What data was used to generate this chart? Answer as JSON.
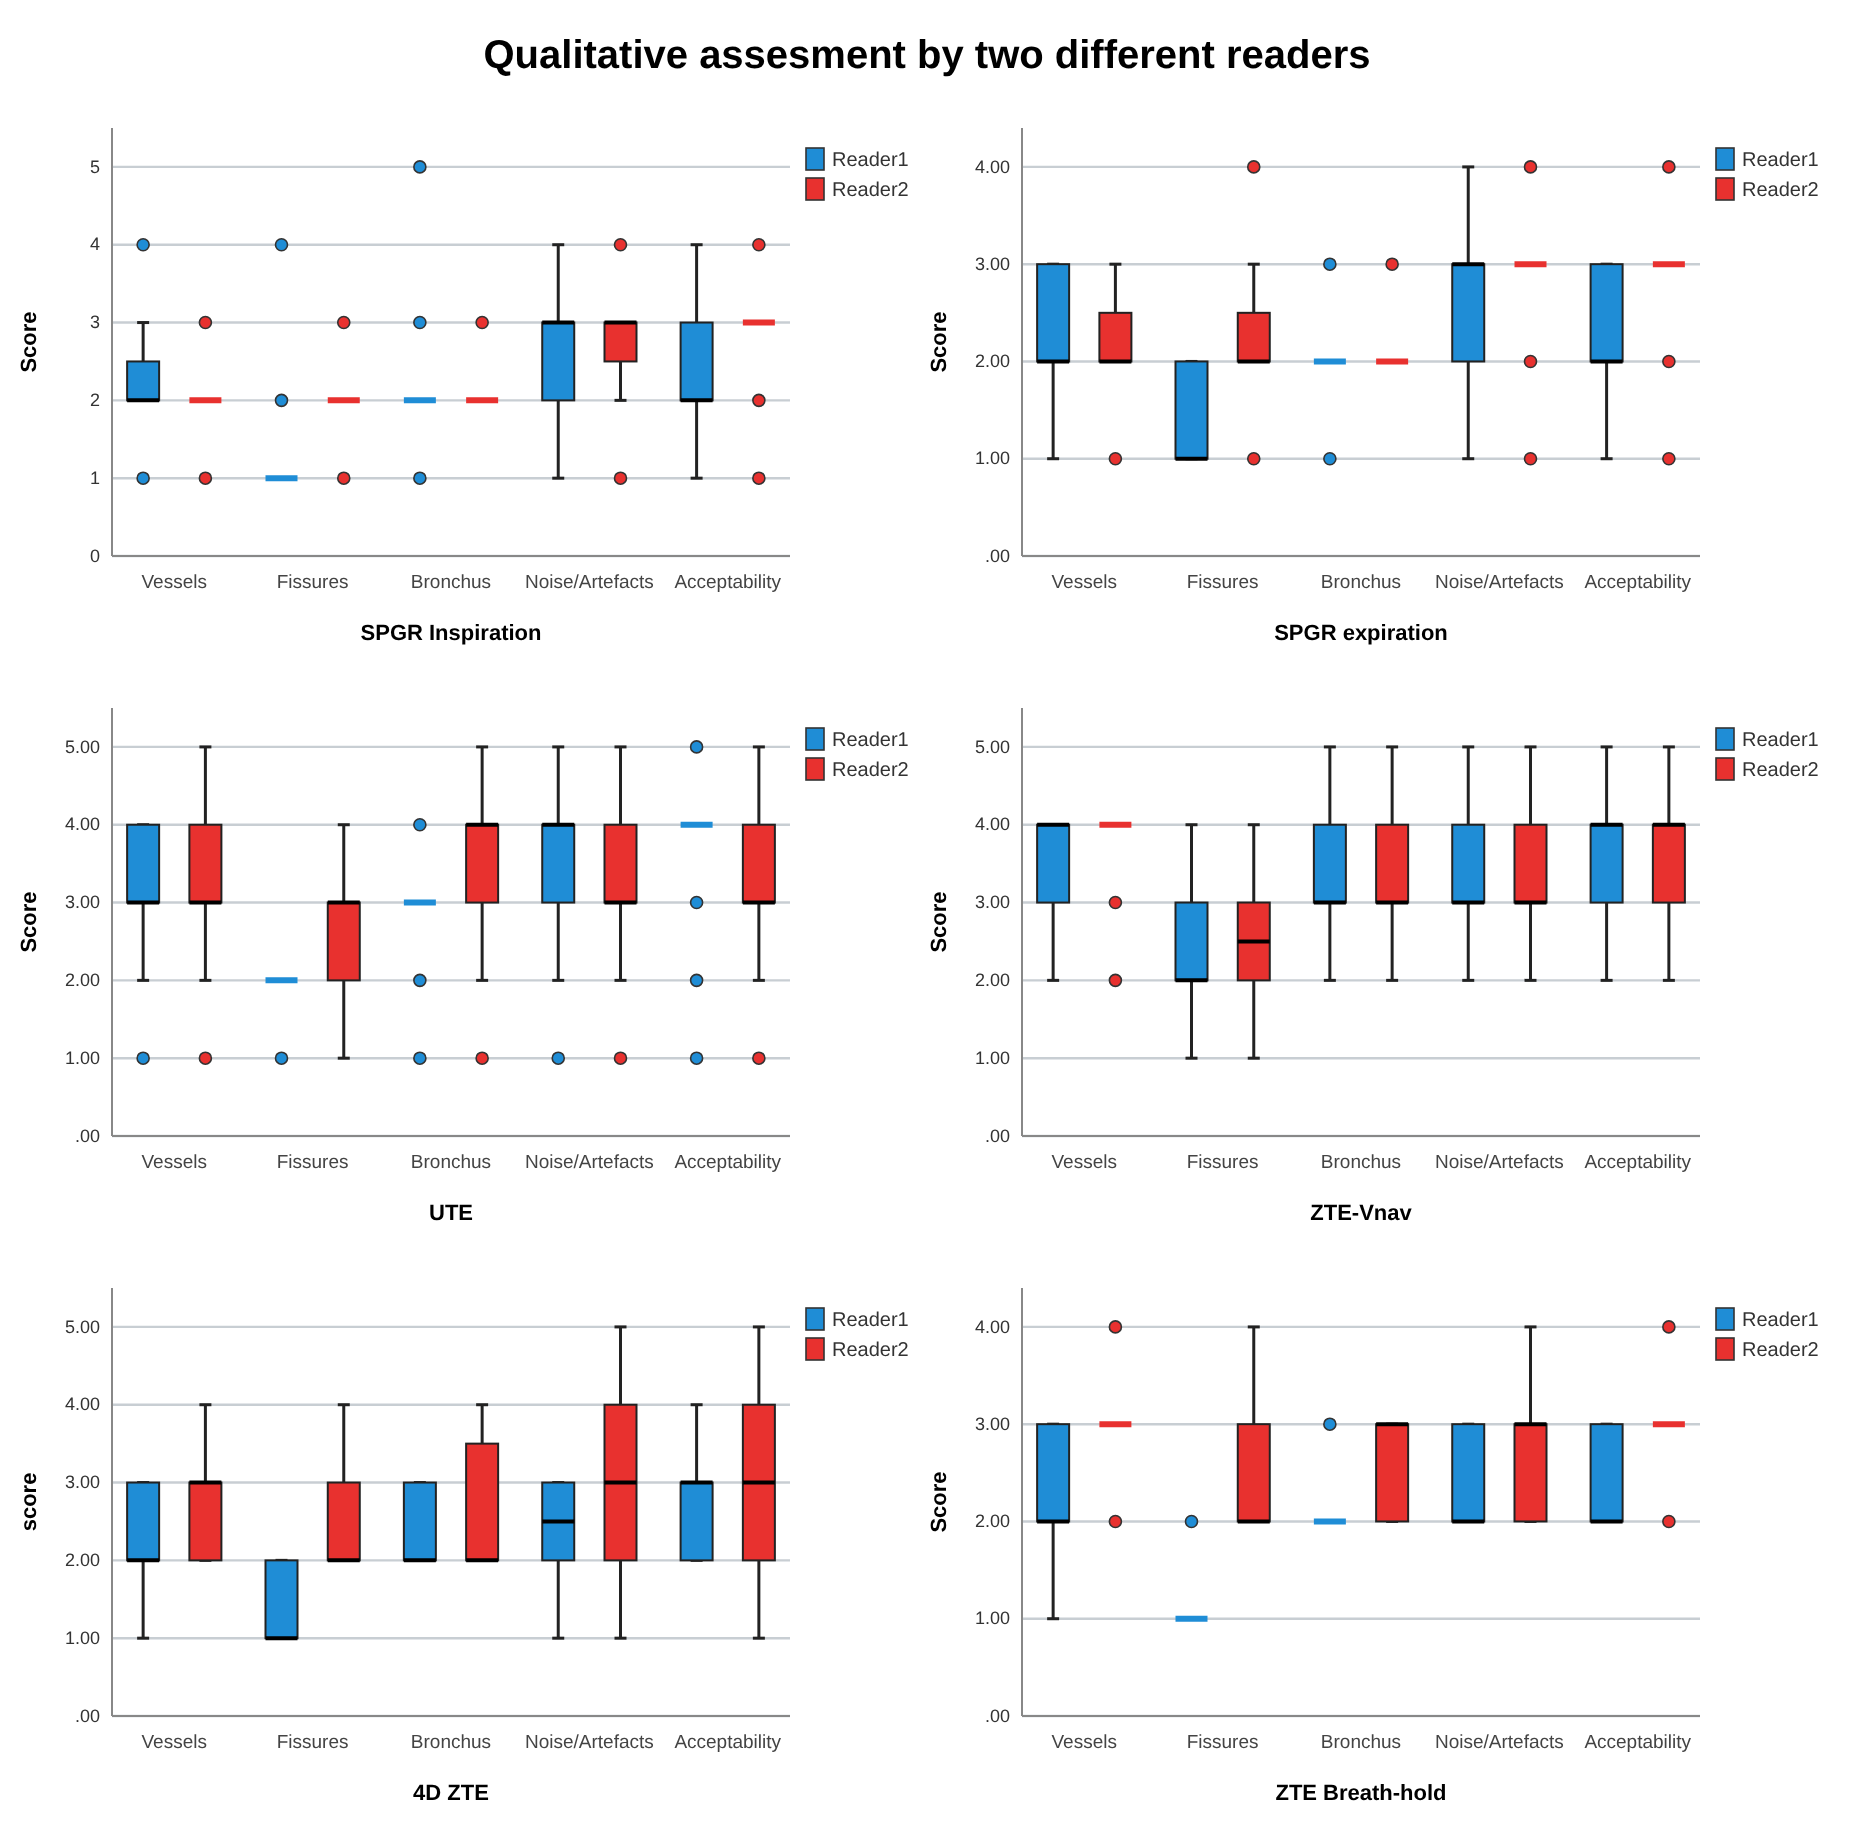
{
  "chart_data": [
    {
      "type": "box",
      "title": "Qualitative assesment by two different readers",
      "xlabel": "SPGR Inspiration",
      "ylabel": "Score",
      "categories": [
        "Vessels",
        "Fissures",
        "Bronchus",
        "Noise/Artefacts",
        "Acceptability"
      ],
      "ylim": [
        0,
        5.5
      ],
      "yticks": [
        0,
        1,
        2,
        3,
        4,
        5
      ],
      "grid": "y",
      "legend": "top right",
      "series": [
        {
          "name": "Reader1",
          "color": "#1f8dd6",
          "boxes": [
            {
              "low": 2,
              "q1": 2,
              "median": 2,
              "q3": 2.5,
              "high": 3,
              "outliers": [
                4,
                1
              ]
            },
            {
              "low": 1,
              "q1": 1,
              "median": 1,
              "q3": 1,
              "high": 1,
              "outliers": [
                4,
                2
              ]
            },
            {
              "low": 2,
              "q1": 2,
              "median": 2,
              "q3": 2,
              "high": 2,
              "outliers": [
                5,
                3,
                1
              ]
            },
            {
              "low": 1,
              "q1": 2,
              "median": 3,
              "q3": 3,
              "high": 4
            },
            {
              "low": 1,
              "q1": 2,
              "median": 2,
              "q3": 3,
              "high": 4
            }
          ]
        },
        {
          "name": "Reader2",
          "color": "#e8312f",
          "boxes": [
            {
              "low": 2,
              "q1": 2,
              "median": 2,
              "q3": 2,
              "high": 2,
              "outliers": [
                3,
                1
              ]
            },
            {
              "low": 2,
              "q1": 2,
              "median": 2,
              "q3": 2,
              "high": 2,
              "outliers": [
                3,
                1
              ]
            },
            {
              "low": 2,
              "q1": 2,
              "median": 2,
              "q3": 2,
              "high": 2,
              "outliers": [
                3
              ]
            },
            {
              "low": 2,
              "q1": 2.5,
              "median": 3,
              "q3": 3,
              "high": 3,
              "outliers": [
                4,
                1
              ]
            },
            {
              "low": 3,
              "q1": 3,
              "median": 3,
              "q3": 3,
              "high": 3,
              "outliers": [
                4,
                2,
                1
              ]
            }
          ]
        }
      ]
    },
    {
      "type": "box",
      "xlabel": "SPGR expiration",
      "ylabel": "Score",
      "categories": [
        "Vessels",
        "Fissures",
        "Bronchus",
        "Noise/Artefacts",
        "Acceptability"
      ],
      "ylim": [
        0,
        4.4
      ],
      "yticks": [
        {
          "value": 0,
          "label": ".00"
        },
        {
          "value": 1,
          "label": "1.00"
        },
        {
          "value": 2,
          "label": "2.00"
        },
        {
          "value": 3,
          "label": "3.00"
        },
        {
          "value": 4,
          "label": "4.00"
        }
      ],
      "grid": "y",
      "legend": "top right",
      "series": [
        {
          "name": "Reader1",
          "color": "#1f8dd6",
          "boxes": [
            {
              "low": 1,
              "q1": 2,
              "median": 2,
              "q3": 3,
              "high": 3
            },
            {
              "low": 1,
              "q1": 1,
              "median": 1,
              "q3": 2,
              "high": 2
            },
            {
              "low": 2,
              "q1": 2,
              "median": 2,
              "q3": 2,
              "high": 2,
              "outliers": [
                3,
                1
              ]
            },
            {
              "low": 1,
              "q1": 2,
              "median": 3,
              "q3": 3,
              "high": 4
            },
            {
              "low": 1,
              "q1": 2,
              "median": 2,
              "q3": 3,
              "high": 3
            }
          ]
        },
        {
          "name": "Reader2",
          "color": "#e8312f",
          "boxes": [
            {
              "low": 2,
              "q1": 2,
              "median": 2,
              "q3": 2.5,
              "high": 3,
              "outliers": [
                1
              ]
            },
            {
              "low": 2,
              "q1": 2,
              "median": 2,
              "q3": 2.5,
              "high": 3,
              "outliers": [
                4,
                1
              ]
            },
            {
              "low": 2,
              "q1": 2,
              "median": 2,
              "q3": 2,
              "high": 2,
              "outliers": [
                3
              ]
            },
            {
              "low": 3,
              "q1": 3,
              "median": 3,
              "q3": 3,
              "high": 3,
              "outliers": [
                4,
                2,
                1
              ]
            },
            {
              "low": 3,
              "q1": 3,
              "median": 3,
              "q3": 3,
              "high": 3,
              "outliers": [
                4,
                2,
                1
              ]
            }
          ]
        }
      ]
    },
    {
      "type": "box",
      "xlabel": "UTE",
      "ylabel": "Score",
      "categories": [
        "Vessels",
        "Fissures",
        "Bronchus",
        "Noise/Artefacts",
        "Acceptability"
      ],
      "ylim": [
        0,
        5.5
      ],
      "yticks": [
        {
          "value": 0,
          "label": ".00"
        },
        {
          "value": 1,
          "label": "1.00"
        },
        {
          "value": 2,
          "label": "2.00"
        },
        {
          "value": 3,
          "label": "3.00"
        },
        {
          "value": 4,
          "label": "4.00"
        },
        {
          "value": 5,
          "label": "5.00"
        }
      ],
      "grid": "y",
      "legend": "top right",
      "series": [
        {
          "name": "Reader1",
          "color": "#1f8dd6",
          "boxes": [
            {
              "low": 2,
              "q1": 3,
              "median": 3,
              "q3": 4,
              "high": 4,
              "outliers": [
                1
              ]
            },
            {
              "low": 2,
              "q1": 2,
              "median": 2,
              "q3": 2,
              "high": 2,
              "outliers": [
                1
              ]
            },
            {
              "low": 3,
              "q1": 3,
              "median": 3,
              "q3": 3,
              "high": 3,
              "outliers": [
                4,
                2,
                1
              ]
            },
            {
              "low": 2,
              "q1": 3,
              "median": 4,
              "q3": 4,
              "high": 5,
              "outliers": [
                1
              ]
            },
            {
              "low": 4,
              "q1": 4,
              "median": 4,
              "q3": 4,
              "high": 4,
              "outliers": [
                5,
                3,
                2,
                1
              ]
            }
          ]
        },
        {
          "name": "Reader2",
          "color": "#e8312f",
          "boxes": [
            {
              "low": 2,
              "q1": 3,
              "median": 3,
              "q3": 4,
              "high": 5,
              "outliers": [
                1
              ]
            },
            {
              "low": 1,
              "q1": 2,
              "median": 3,
              "q3": 3,
              "high": 4
            },
            {
              "low": 2,
              "q1": 3,
              "median": 4,
              "q3": 4,
              "high": 5,
              "outliers": [
                1
              ]
            },
            {
              "low": 2,
              "q1": 3,
              "median": 3,
              "q3": 4,
              "high": 5,
              "outliers": [
                1
              ]
            },
            {
              "low": 2,
              "q1": 3,
              "median": 3,
              "q3": 4,
              "high": 5,
              "outliers": [
                1
              ]
            }
          ]
        }
      ]
    },
    {
      "type": "box",
      "xlabel": "ZTE-Vnav",
      "ylabel": "Score",
      "categories": [
        "Vessels",
        "Fissures",
        "Bronchus",
        "Noise/Artefacts",
        "Acceptability"
      ],
      "ylim": [
        0,
        5.5
      ],
      "yticks": [
        {
          "value": 0,
          "label": ".00"
        },
        {
          "value": 1,
          "label": "1.00"
        },
        {
          "value": 2,
          "label": "2.00"
        },
        {
          "value": 3,
          "label": "3.00"
        },
        {
          "value": 4,
          "label": "4.00"
        },
        {
          "value": 5,
          "label": "5.00"
        }
      ],
      "grid": "y",
      "legend": "top right",
      "series": [
        {
          "name": "Reader1",
          "color": "#1f8dd6",
          "boxes": [
            {
              "low": 2,
              "q1": 3,
              "median": 4,
              "q3": 4,
              "high": 4
            },
            {
              "low": 1,
              "q1": 2,
              "median": 2,
              "q3": 3,
              "high": 4
            },
            {
              "low": 2,
              "q1": 3,
              "median": 3,
              "q3": 4,
              "high": 5
            },
            {
              "low": 2,
              "q1": 3,
              "median": 3,
              "q3": 4,
              "high": 5
            },
            {
              "low": 2,
              "q1": 3,
              "median": 4,
              "q3": 4,
              "high": 5
            }
          ]
        },
        {
          "name": "Reader2",
          "color": "#e8312f",
          "boxes": [
            {
              "low": 4,
              "q1": 4,
              "median": 4,
              "q3": 4,
              "high": 4,
              "outliers": [
                3,
                2
              ]
            },
            {
              "low": 1,
              "q1": 2,
              "median": 2.5,
              "q3": 3,
              "high": 4
            },
            {
              "low": 2,
              "q1": 3,
              "median": 3,
              "q3": 4,
              "high": 5
            },
            {
              "low": 2,
              "q1": 3,
              "median": 3,
              "q3": 4,
              "high": 5
            },
            {
              "low": 2,
              "q1": 3,
              "median": 4,
              "q3": 4,
              "high": 5
            }
          ]
        }
      ]
    },
    {
      "type": "box",
      "xlabel": "4D ZTE",
      "ylabel": "score",
      "categories": [
        "Vessels",
        "Fissures",
        "Bronchus",
        "Noise/Artefacts",
        "Acceptability"
      ],
      "ylim": [
        0,
        5.5
      ],
      "yticks": [
        {
          "value": 0,
          "label": ".00"
        },
        {
          "value": 1,
          "label": "1.00"
        },
        {
          "value": 2,
          "label": "2.00"
        },
        {
          "value": 3,
          "label": "3.00"
        },
        {
          "value": 4,
          "label": "4.00"
        },
        {
          "value": 5,
          "label": "5.00"
        }
      ],
      "grid": "y",
      "legend": "top right",
      "series": [
        {
          "name": "Reader1",
          "color": "#1f8dd6",
          "boxes": [
            {
              "low": 1,
              "q1": 2,
              "median": 2,
              "q3": 3,
              "high": 3
            },
            {
              "low": 1,
              "q1": 1,
              "median": 1,
              "q3": 2,
              "high": 2
            },
            {
              "low": 2,
              "q1": 2,
              "median": 2,
              "q3": 3,
              "high": 3
            },
            {
              "low": 1,
              "q1": 2,
              "median": 2.5,
              "q3": 3,
              "high": 3
            },
            {
              "low": 2,
              "q1": 2,
              "median": 3,
              "q3": 3,
              "high": 4
            }
          ]
        },
        {
          "name": "Reader2",
          "color": "#e8312f",
          "boxes": [
            {
              "low": 2,
              "q1": 2,
              "median": 3,
              "q3": 3,
              "high": 4
            },
            {
              "low": 2,
              "q1": 2,
              "median": 2,
              "q3": 3,
              "high": 4
            },
            {
              "low": 2,
              "q1": 2,
              "median": 2,
              "q3": 3.5,
              "high": 4
            },
            {
              "low": 1,
              "q1": 2,
              "median": 3,
              "q3": 4,
              "high": 5
            },
            {
              "low": 1,
              "q1": 2,
              "median": 3,
              "q3": 4,
              "high": 5
            }
          ]
        }
      ]
    },
    {
      "type": "box",
      "xlabel": "ZTE Breath-hold",
      "ylabel": "Score",
      "categories": [
        "Vessels",
        "Fissures",
        "Bronchus",
        "Noise/Artefacts",
        "Acceptability"
      ],
      "ylim": [
        0,
        4.4
      ],
      "yticks": [
        {
          "value": 0,
          "label": ".00"
        },
        {
          "value": 1,
          "label": "1.00"
        },
        {
          "value": 2,
          "label": "2.00"
        },
        {
          "value": 3,
          "label": "3.00"
        },
        {
          "value": 4,
          "label": "4.00"
        }
      ],
      "grid": "y",
      "legend": "top right",
      "series": [
        {
          "name": "Reader1",
          "color": "#1f8dd6",
          "boxes": [
            {
              "low": 1,
              "q1": 2,
              "median": 2,
              "q3": 3,
              "high": 3
            },
            {
              "low": 1,
              "q1": 1,
              "median": 1,
              "q3": 1,
              "high": 1,
              "outliers": [
                2
              ]
            },
            {
              "low": 2,
              "q1": 2,
              "median": 2,
              "q3": 2,
              "high": 2,
              "outliers": [
                3
              ]
            },
            {
              "low": 2,
              "q1": 2,
              "median": 2,
              "q3": 3,
              "high": 3
            },
            {
              "low": 2,
              "q1": 2,
              "median": 2,
              "q3": 3,
              "high": 3
            }
          ]
        },
        {
          "name": "Reader2",
          "color": "#e8312f",
          "boxes": [
            {
              "low": 3,
              "q1": 3,
              "median": 3,
              "q3": 3,
              "high": 3,
              "outliers": [
                4,
                2
              ]
            },
            {
              "low": 2,
              "q1": 2,
              "median": 2,
              "q3": 3,
              "high": 4
            },
            {
              "low": 2,
              "q1": 2,
              "median": 3,
              "q3": 3,
              "high": 3
            },
            {
              "low": 2,
              "q1": 2,
              "median": 3,
              "q3": 3,
              "high": 4
            },
            {
              "low": 3,
              "q1": 3,
              "median": 3,
              "q3": 3,
              "high": 3,
              "outliers": [
                4,
                2
              ]
            }
          ]
        }
      ]
    }
  ]
}
